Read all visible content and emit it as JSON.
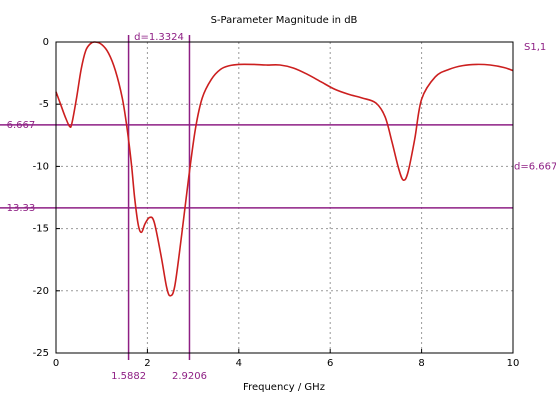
{
  "chart_data": {
    "type": "line",
    "title": "S-Parameter Magnitude in dB",
    "xlabel": "Frequency / GHz",
    "ylabel": "",
    "xlim": [
      0,
      10
    ],
    "ylim": [
      -25,
      0
    ],
    "x_ticks": [
      "0",
      "2",
      "4",
      "6",
      "8",
      "10"
    ],
    "y_ticks": [
      "0",
      "-5",
      "-10",
      "-15",
      "-20",
      "-25"
    ],
    "grid": true,
    "series": [
      {
        "name": "S1,1",
        "color": "#cc1f1f",
        "x": [
          0,
          0.1,
          0.2,
          0.3,
          0.35,
          0.45,
          0.55,
          0.65,
          0.75,
          0.85,
          1.0,
          1.15,
          1.3,
          1.45,
          1.55,
          1.65,
          1.72,
          1.8,
          1.87,
          1.95,
          2.05,
          2.15,
          2.3,
          2.42,
          2.5,
          2.6,
          2.75,
          2.9,
          3.05,
          3.2,
          3.4,
          3.6,
          3.8,
          4.0,
          4.3,
          4.6,
          4.9,
          5.2,
          5.5,
          5.8,
          6.1,
          6.4,
          6.7,
          7.0,
          7.2,
          7.35,
          7.5,
          7.6,
          7.7,
          7.85,
          8.0,
          8.3,
          8.6,
          8.9,
          9.2,
          9.5,
          9.8,
          10.0
        ],
        "y": [
          -4.0,
          -5.0,
          -6.0,
          -6.8,
          -6.5,
          -4.5,
          -2.2,
          -0.7,
          -0.15,
          0.0,
          -0.2,
          -0.9,
          -2.3,
          -4.5,
          -6.8,
          -9.8,
          -12.5,
          -14.7,
          -15.3,
          -14.6,
          -14.1,
          -14.5,
          -17.2,
          -19.7,
          -20.4,
          -19.6,
          -15.5,
          -11.0,
          -7.0,
          -4.5,
          -3.0,
          -2.2,
          -1.9,
          -1.8,
          -1.8,
          -1.85,
          -1.85,
          -2.1,
          -2.6,
          -3.2,
          -3.8,
          -4.2,
          -4.5,
          -4.9,
          -6.0,
          -8.0,
          -10.2,
          -11.1,
          -10.5,
          -7.8,
          -4.6,
          -2.8,
          -2.2,
          -1.9,
          -1.8,
          -1.85,
          -2.05,
          -2.3
        ]
      }
    ],
    "markers": {
      "horizontal": [
        {
          "value": -6.667,
          "label": "-6.667"
        },
        {
          "value": -13.33,
          "label": "-13.33"
        }
      ],
      "vertical": [
        {
          "value": 1.5882,
          "label": "1.5882"
        },
        {
          "value": 2.9206,
          "label": "2.9206"
        }
      ],
      "delta_x_label": "d=1.3324",
      "delta_y_label": "d=6.667",
      "color": "#8e1f84"
    },
    "colors": {
      "axis": "#000000",
      "grid": "#9a9a9a",
      "tick_label": "#000000"
    }
  }
}
